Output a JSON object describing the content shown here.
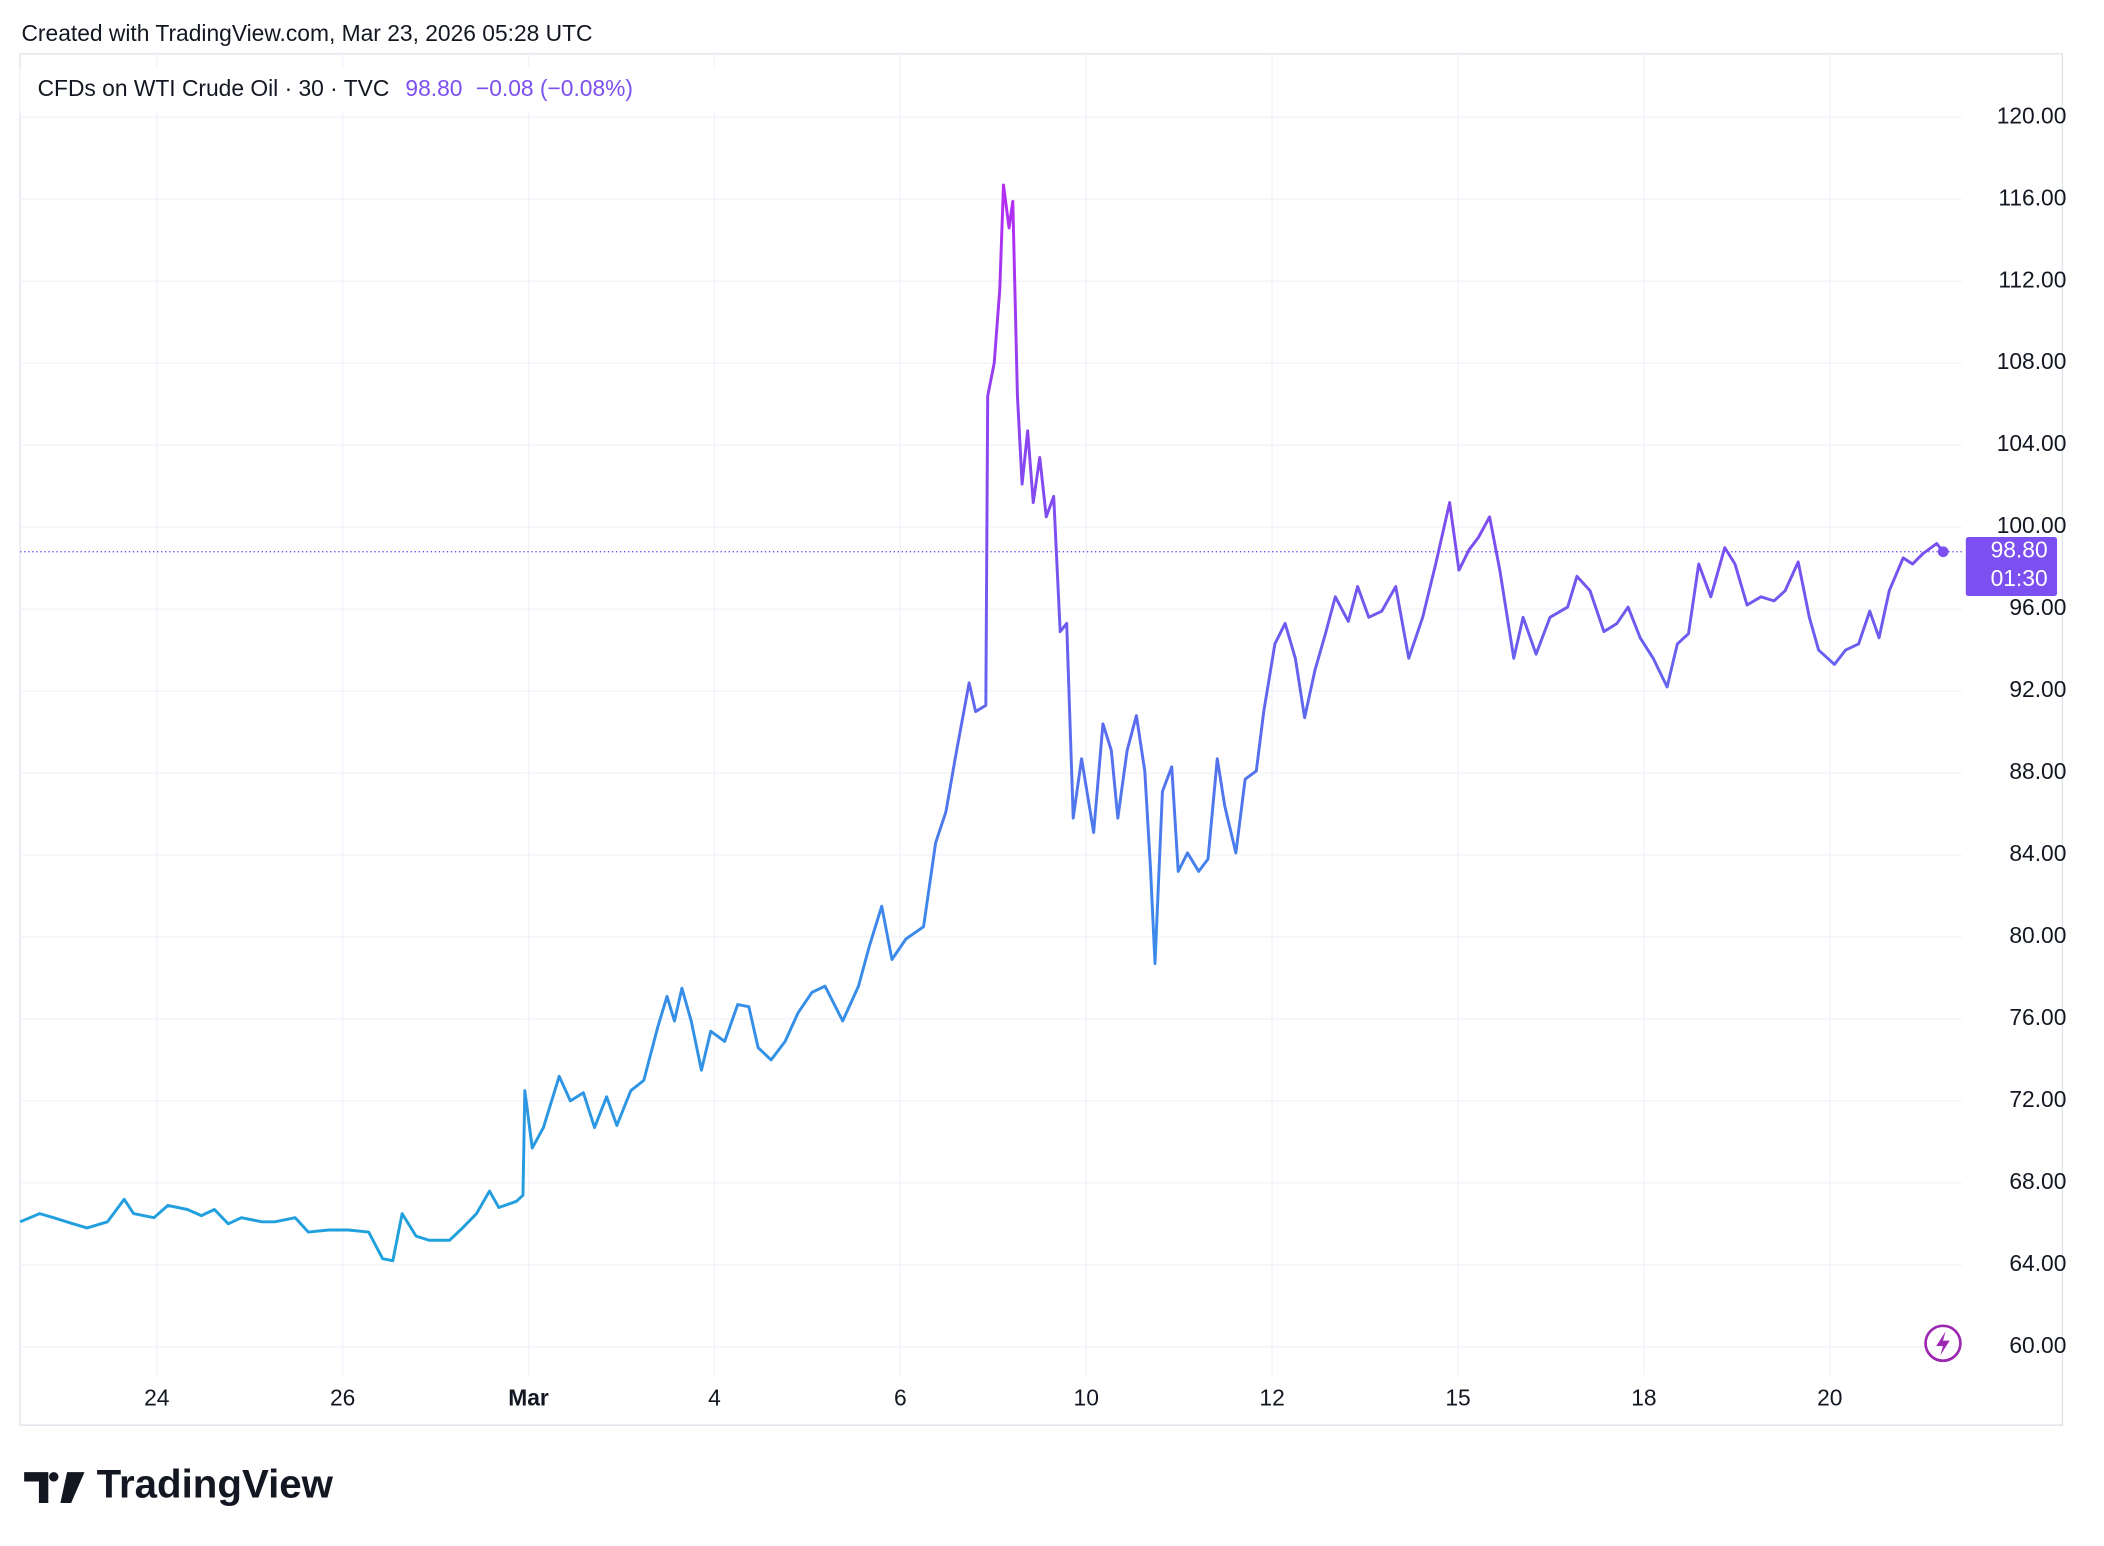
{
  "header": {
    "text": "Created with TradingView.com, Mar 23, 2026 05:28 UTC"
  },
  "footer": {
    "logo": "TradingView"
  },
  "chart_data": {
    "type": "line",
    "title": "CFDs on WTI Crude Oil · 30 · TVC",
    "change": "−0.08 (−0.08%)",
    "price_line": {
      "value": 98.8,
      "label": "98.80",
      "countdown": "01:30"
    },
    "color": "#7b4ff0",
    "gradient": [
      "#1ea3dc",
      "#3f86ec",
      "#7b4ff0",
      "#b52cf2"
    ],
    "grid": true,
    "xlim": [
      -0.47,
      20.42
    ],
    "ylim": [
      58.6,
      123.1
    ],
    "xticks": [
      {
        "value": 1,
        "label": "24"
      },
      {
        "value": 3,
        "label": "26"
      },
      {
        "value": 5,
        "label": "Mar"
      },
      {
        "value": 7,
        "label": "4"
      },
      {
        "value": 9,
        "label": "6"
      },
      {
        "value": 11,
        "label": "10"
      },
      {
        "value": 13,
        "label": "12"
      },
      {
        "value": 15,
        "label": "15"
      },
      {
        "value": 17,
        "label": "18"
      },
      {
        "value": 19,
        "label": "20"
      }
    ],
    "yticks": [
      {
        "value": 60,
        "label": "60.00"
      },
      {
        "value": 64,
        "label": "64.00"
      },
      {
        "value": 68,
        "label": "68.00"
      },
      {
        "value": 72,
        "label": "72.00"
      },
      {
        "value": 76,
        "label": "76.00"
      },
      {
        "value": 80,
        "label": "80.00"
      },
      {
        "value": 84,
        "label": "84.00"
      },
      {
        "value": 88,
        "label": "88.00"
      },
      {
        "value": 92,
        "label": "92.00"
      },
      {
        "value": 96,
        "label": "96.00"
      },
      {
        "value": 100,
        "label": "100.00"
      },
      {
        "value": 104,
        "label": "104.00"
      },
      {
        "value": 108,
        "label": "108.00"
      },
      {
        "value": 112,
        "label": "112.00"
      },
      {
        "value": 116,
        "label": "116.00"
      },
      {
        "value": 120,
        "label": "120.00"
      }
    ],
    "x": [
      -0.47,
      -0.26,
      -0.11,
      0.1,
      0.25,
      0.47,
      0.65,
      0.75,
      0.97,
      1.12,
      1.33,
      1.48,
      1.62,
      1.77,
      1.91,
      2.13,
      2.27,
      2.49,
      2.63,
      2.85,
      3.06,
      3.28,
      3.43,
      3.54,
      3.64,
      3.79,
      3.93,
      4.15,
      4.29,
      4.44,
      4.58,
      4.68,
      4.87,
      4.94,
      4.96,
      5.04,
      5.16,
      5.33,
      5.45,
      5.59,
      5.71,
      5.84,
      5.95,
      6.1,
      6.24,
      6.39,
      6.49,
      6.57,
      6.65,
      6.75,
      6.86,
      6.96,
      7.11,
      7.25,
      7.37,
      7.47,
      7.61,
      7.76,
      7.9,
      8.05,
      8.19,
      8.38,
      8.55,
      8.67,
      8.8,
      8.91,
      9.06,
      9.25,
      9.38,
      9.49,
      9.59,
      9.74,
      9.81,
      9.92,
      9.94,
      10.01,
      10.07,
      10.11,
      10.17,
      10.21,
      10.26,
      10.31,
      10.37,
      10.43,
      10.5,
      10.57,
      10.65,
      10.72,
      10.79,
      10.86,
      10.95,
      11.08,
      11.18,
      11.27,
      11.34,
      11.44,
      11.54,
      11.63,
      11.69,
      11.74,
      11.82,
      11.92,
      11.99,
      12.09,
      12.21,
      12.31,
      12.41,
      12.49,
      12.61,
      12.71,
      12.83,
      12.91,
      13.03,
      13.14,
      13.25,
      13.35,
      13.46,
      13.58,
      13.68,
      13.82,
      13.92,
      14.04,
      14.18,
      14.33,
      14.47,
      14.62,
      14.76,
      14.91,
      15.01,
      15.12,
      15.22,
      15.34,
      15.45,
      15.6,
      15.7,
      15.84,
      15.99,
      16.18,
      16.28,
      16.42,
      16.57,
      16.71,
      16.83,
      16.96,
      17.1,
      17.25,
      17.36,
      17.48,
      17.59,
      17.72,
      17.87,
      17.98,
      18.11,
      18.26,
      18.4,
      18.52,
      18.66,
      18.78,
      18.88,
      19.05,
      19.17,
      19.31,
      19.43,
      19.53,
      19.64,
      19.79,
      19.89,
      20.0,
      20.15,
      20.22
    ],
    "values": [
      66.1,
      66.5,
      66.3,
      66.0,
      65.8,
      66.1,
      67.2,
      66.5,
      66.3,
      66.9,
      66.7,
      66.4,
      66.7,
      66.0,
      66.3,
      66.1,
      66.1,
      66.3,
      65.6,
      65.7,
      65.7,
      65.6,
      64.3,
      64.2,
      66.5,
      65.4,
      65.2,
      65.2,
      65.8,
      66.5,
      67.6,
      66.8,
      67.1,
      67.4,
      72.5,
      69.7,
      70.7,
      73.2,
      72.0,
      72.4,
      70.7,
      72.2,
      70.8,
      72.5,
      73.0,
      75.6,
      77.1,
      75.9,
      77.5,
      75.9,
      73.5,
      75.4,
      74.9,
      76.7,
      76.6,
      74.6,
      74.0,
      74.9,
      76.3,
      77.3,
      77.6,
      75.9,
      77.6,
      79.6,
      81.5,
      78.9,
      79.9,
      80.5,
      84.6,
      86.1,
      88.7,
      92.4,
      91.0,
      91.3,
      106.4,
      108.0,
      111.6,
      116.7,
      114.6,
      115.9,
      106.4,
      102.1,
      104.7,
      101.2,
      103.4,
      100.5,
      101.5,
      94.9,
      95.3,
      85.8,
      88.7,
      85.1,
      90.4,
      89.1,
      85.8,
      89.1,
      90.8,
      88.1,
      83.5,
      78.7,
      87.1,
      88.3,
      83.2,
      84.1,
      83.2,
      83.8,
      88.7,
      86.4,
      84.1,
      87.7,
      88.1,
      91.0,
      94.3,
      95.3,
      93.6,
      90.7,
      93.0,
      94.9,
      96.6,
      95.4,
      97.1,
      95.6,
      95.9,
      97.1,
      93.6,
      95.6,
      98.2,
      101.2,
      97.9,
      98.9,
      99.5,
      100.5,
      97.9,
      93.6,
      95.6,
      93.8,
      95.6,
      96.1,
      97.6,
      96.9,
      94.9,
      95.3,
      96.1,
      94.6,
      93.6,
      92.2,
      94.3,
      94.8,
      98.2,
      96.6,
      99.0,
      98.2,
      96.2,
      96.6,
      96.4,
      96.9,
      98.3,
      95.6,
      94.0,
      93.3,
      94.0,
      94.3,
      95.9,
      94.6,
      96.9,
      98.5,
      98.2,
      98.7,
      99.2,
      98.8
    ]
  }
}
